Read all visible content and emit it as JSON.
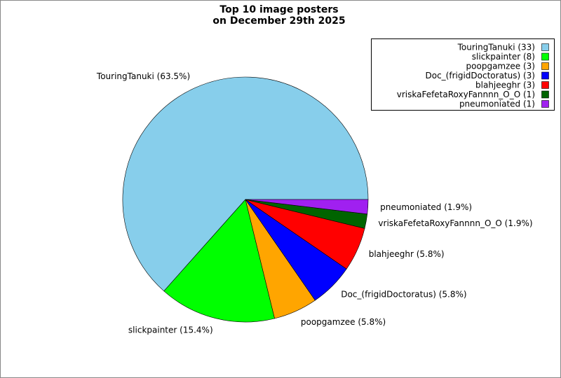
{
  "chart_data": {
    "type": "pie",
    "title": [
      "Top 10 image posters",
      "on December 29th 2025"
    ],
    "legend": [
      "TouringTanuki (33)",
      "slickpainter (8)",
      "poopgamzee (3)",
      "Doc_(frigidDoctoratus) (3)",
      "blahjeeghr (3)",
      "vriskaFefetaRoxyFannnn_O_O (1)",
      "pneumoniated (1)"
    ],
    "values": [
      63.5,
      15.4,
      5.8,
      5.8,
      5.8,
      1.9,
      1.9
    ],
    "value_labels": [
      "TouringTanuki (63.5%)",
      "slickpainter (15.4%)",
      "poopgamzee (5.8%)",
      "Doc_(frigidDoctoratus) (5.8%)",
      "blahjeeghr (5.8%)",
      "vriskaFefetaRoxyFannnn_O_O (1.9%)",
      "pneumoniated (1.9%)"
    ],
    "colors": [
      "#87ceeb",
      "#00ff00",
      "#ffa500",
      "#0000ff",
      "#ff0000",
      "#006400",
      "#a020f0"
    ],
    "legend_position": "upper right"
  }
}
